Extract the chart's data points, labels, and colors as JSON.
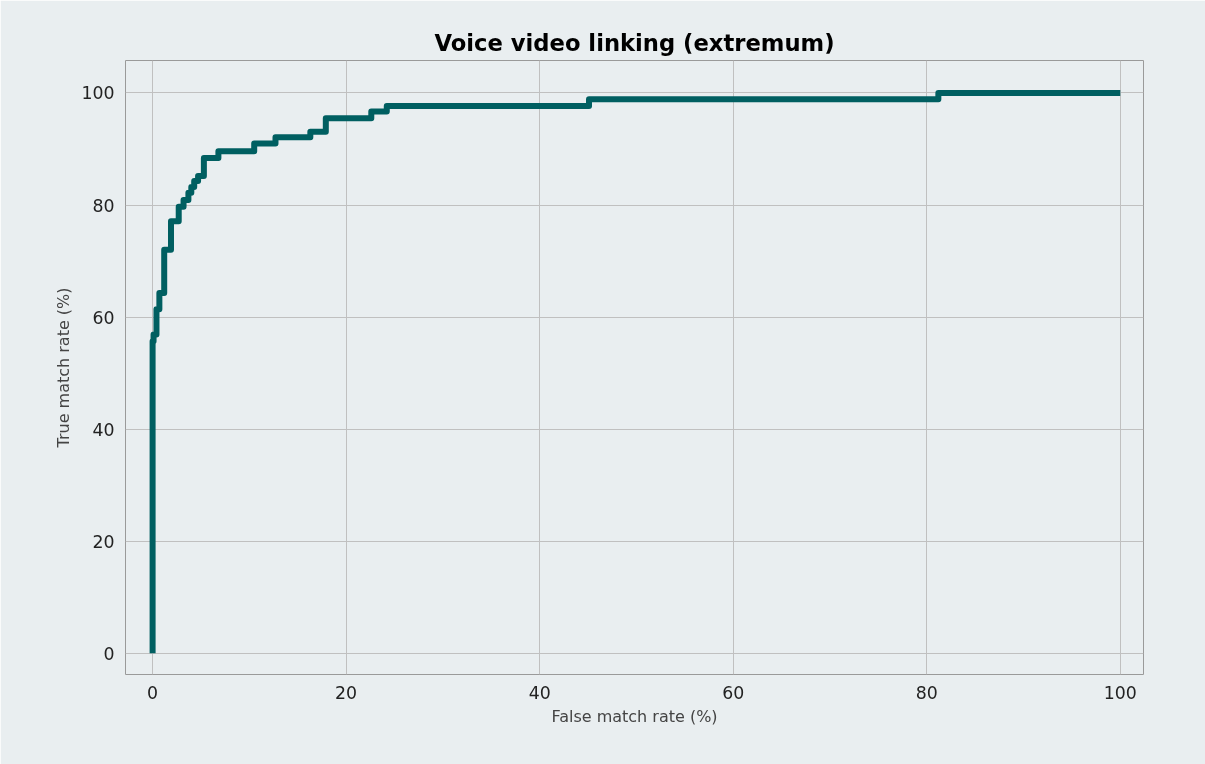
{
  "chart_data": {
    "type": "step",
    "title": "Voice video linking (extremum)",
    "xlabel": "False match rate (%)",
    "ylabel": "True match rate (%)",
    "x": [
      0,
      0,
      0.1,
      0.4,
      0.7,
      1.2,
      1.9,
      2.7,
      3.2,
      3.7,
      4.0,
      4.3,
      4.7,
      5.3,
      6.8,
      10.5,
      12.7,
      16.3,
      17.9,
      22.6,
      24.2,
      45.1,
      81.2,
      100
    ],
    "series": [
      {
        "color": "#005f61",
        "values": [
          0,
          55.7,
          56.9,
          61.4,
          64.3,
          72.0,
          77.1,
          79.7,
          80.9,
          82.2,
          83.2,
          84.3,
          85.2,
          88.4,
          89.6,
          91.0,
          92.1,
          93.1,
          95.5,
          96.7,
          97.7,
          98.9,
          100,
          100
        ]
      }
    ],
    "xlim": [
      -2.8,
      102.4
    ],
    "ylim": [
      -3.8,
      105.8
    ],
    "xticks": [
      0,
      20,
      40,
      60,
      80,
      100
    ],
    "yticks": [
      0,
      20,
      40,
      60,
      80,
      100
    ],
    "grid": true,
    "line_style": "solid"
  }
}
